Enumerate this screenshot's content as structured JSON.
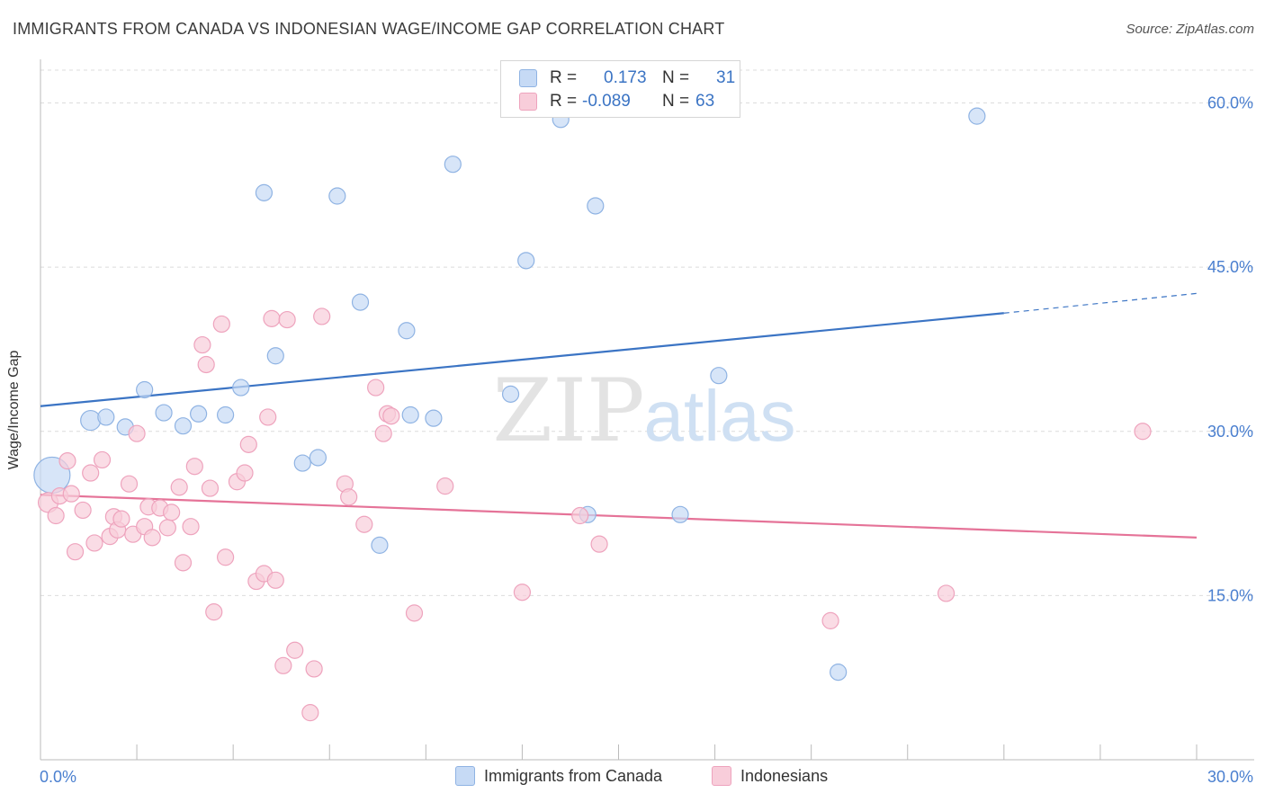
{
  "header": {
    "title": "IMMIGRANTS FROM CANADA VS INDONESIAN WAGE/INCOME GAP CORRELATION CHART",
    "source": "Source: ZipAtlas.com"
  },
  "watermark": {
    "zip": "ZIP",
    "atlas": "atlas"
  },
  "legend": {
    "rows": [
      {
        "r_label": "R =",
        "r_value": "0.173",
        "n_label": "N =",
        "n_value": "31",
        "color": "#a9c7ef"
      },
      {
        "r_label": "R =",
        "r_value": "-0.089",
        "n_label": "N =",
        "n_value": "63",
        "color": "#f6b9cd"
      }
    ]
  },
  "bottom_legend": [
    {
      "label": "Immigrants from Canada",
      "color": "#a9c7ef"
    },
    {
      "label": "Indonesians",
      "color": "#f6b9cd"
    }
  ],
  "chart_data": {
    "type": "scatter",
    "title": "IMMIGRANTS FROM CANADA VS INDONESIAN WAGE/INCOME GAP CORRELATION CHART",
    "xlabel": "",
    "ylabel": "Wage/Income Gap",
    "xlim": [
      0,
      30
    ],
    "ylim": [
      0,
      63
    ],
    "x_tick_labels": [
      "0.0%",
      "30.0%"
    ],
    "y_ticks": [
      15,
      30,
      45,
      60
    ],
    "y_tick_labels": [
      "15.0%",
      "30.0%",
      "45.0%",
      "60.0%"
    ],
    "grid": true,
    "colors": {
      "blue": "#3b74c4",
      "blue_fill": "#c6daf5",
      "pink": "#e57398",
      "pink_fill": "#f8cdda",
      "axis_label": "#4a7fcf"
    },
    "series": [
      {
        "name": "Immigrants from Canada",
        "color": "#3b74c4",
        "points": [
          [
            0.3,
            26.0,
            20
          ],
          [
            1.3,
            31.0,
            11
          ],
          [
            1.7,
            31.3,
            9
          ],
          [
            2.2,
            30.4,
            9
          ],
          [
            2.7,
            33.8,
            9
          ],
          [
            3.2,
            31.7,
            9
          ],
          [
            3.7,
            30.5,
            9
          ],
          [
            4.1,
            31.6,
            9
          ],
          [
            4.8,
            31.5,
            9
          ],
          [
            5.2,
            34.0,
            9
          ],
          [
            5.8,
            51.8,
            9
          ],
          [
            6.1,
            36.9,
            9
          ],
          [
            6.8,
            27.1,
            9
          ],
          [
            7.2,
            27.6,
            9
          ],
          [
            7.7,
            51.5,
            9
          ],
          [
            8.3,
            41.8,
            9
          ],
          [
            8.8,
            19.6,
            9
          ],
          [
            9.5,
            39.2,
            9
          ],
          [
            9.6,
            31.5,
            9
          ],
          [
            10.2,
            31.2,
            9
          ],
          [
            10.7,
            54.4,
            9
          ],
          [
            12.2,
            33.4,
            9
          ],
          [
            12.6,
            45.6,
            9
          ],
          [
            14.2,
            22.4,
            9
          ],
          [
            14.4,
            50.6,
            9
          ],
          [
            16.6,
            22.4,
            9
          ],
          [
            17.6,
            35.1,
            9
          ],
          [
            20.7,
            8.0,
            9
          ],
          [
            24.3,
            58.8,
            9
          ],
          [
            13.5,
            58.5,
            9
          ],
          [
            11.0,
            30.0,
            0
          ]
        ]
      },
      {
        "name": "Indonesians",
        "color": "#e57398",
        "points": [
          [
            0.2,
            23.5,
            11
          ],
          [
            0.4,
            22.3,
            9
          ],
          [
            0.5,
            24.1,
            9
          ],
          [
            0.7,
            27.3,
            9
          ],
          [
            0.8,
            24.3,
            9
          ],
          [
            0.9,
            19.0,
            9
          ],
          [
            1.1,
            22.8,
            9
          ],
          [
            1.3,
            26.2,
            9
          ],
          [
            1.4,
            19.8,
            9
          ],
          [
            1.6,
            27.4,
            9
          ],
          [
            1.8,
            20.4,
            9
          ],
          [
            1.9,
            22.2,
            9
          ],
          [
            2.0,
            21.0,
            9
          ],
          [
            2.1,
            22.0,
            9
          ],
          [
            2.3,
            25.2,
            9
          ],
          [
            2.4,
            20.6,
            9
          ],
          [
            2.5,
            29.8,
            9
          ],
          [
            2.7,
            21.3,
            9
          ],
          [
            2.8,
            23.1,
            9
          ],
          [
            2.9,
            20.3,
            9
          ],
          [
            3.1,
            23.0,
            9
          ],
          [
            3.3,
            21.2,
            9
          ],
          [
            3.4,
            22.6,
            9
          ],
          [
            3.6,
            24.9,
            9
          ],
          [
            3.7,
            18.0,
            9
          ],
          [
            3.9,
            21.3,
            9
          ],
          [
            4.0,
            26.8,
            9
          ],
          [
            4.2,
            37.9,
            9
          ],
          [
            4.3,
            36.1,
            9
          ],
          [
            4.4,
            24.8,
            9
          ],
          [
            4.5,
            13.5,
            9
          ],
          [
            4.7,
            39.8,
            9
          ],
          [
            4.8,
            18.5,
            9
          ],
          [
            5.1,
            25.4,
            9
          ],
          [
            5.3,
            26.2,
            9
          ],
          [
            5.4,
            28.8,
            9
          ],
          [
            5.6,
            16.3,
            9
          ],
          [
            5.8,
            17.0,
            9
          ],
          [
            5.9,
            31.3,
            9
          ],
          [
            6.0,
            40.3,
            9
          ],
          [
            6.1,
            16.4,
            9
          ],
          [
            6.3,
            8.6,
            9
          ],
          [
            6.4,
            40.2,
            9
          ],
          [
            6.6,
            10.0,
            9
          ],
          [
            7.0,
            4.3,
            9
          ],
          [
            7.1,
            8.3,
            9
          ],
          [
            7.3,
            40.5,
            9
          ],
          [
            7.9,
            25.2,
            9
          ],
          [
            8.0,
            24.0,
            9
          ],
          [
            8.4,
            21.5,
            9
          ],
          [
            8.7,
            34.0,
            9
          ],
          [
            8.9,
            29.8,
            9
          ],
          [
            9.0,
            31.6,
            9
          ],
          [
            9.1,
            31.4,
            9
          ],
          [
            9.7,
            13.4,
            9
          ],
          [
            10.5,
            25.0,
            9
          ],
          [
            12.5,
            15.3,
            9
          ],
          [
            14.0,
            22.3,
            9
          ],
          [
            14.5,
            19.7,
            9
          ],
          [
            20.5,
            12.7,
            9
          ],
          [
            23.5,
            15.2,
            9
          ],
          [
            28.6,
            30.0,
            9
          ],
          [
            9.2,
            31.0,
            0
          ]
        ]
      }
    ],
    "trendlines": [
      {
        "series": "Immigrants from Canada",
        "x0": 0,
        "y0": 32.3,
        "x1": 25,
        "y1": 40.8,
        "dash_x1": 30,
        "dash_y1": 42.6
      },
      {
        "series": "Indonesians",
        "x0": 0,
        "y0": 24.2,
        "x1": 30,
        "y1": 20.3
      }
    ]
  }
}
